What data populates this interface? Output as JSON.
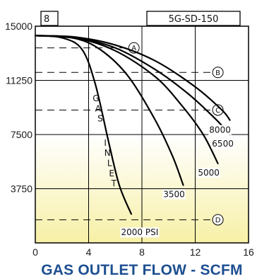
{
  "chart_data": {
    "type": "line",
    "id_label": "8",
    "model_label": "5G-SD-150",
    "xlabel": "GAS OUTLET FLOW - SCFM",
    "ylabel": "",
    "xlim": [
      0,
      16
    ],
    "ylim": [
      0,
      15000
    ],
    "x_ticks": [
      "0",
      "4",
      "8",
      "12",
      "16"
    ],
    "y_ticks": [
      "3750",
      "7500",
      "11250",
      "15000"
    ],
    "x_tick_values": [
      0,
      4,
      8,
      12,
      16
    ],
    "y_tick_values": [
      3750,
      7500,
      11250,
      15000
    ],
    "grid": true,
    "background": {
      "top": "#ffffff",
      "bottom": "#f7f0a6",
      "shade_below": 7500
    },
    "curve_annotation": "GAS INLET",
    "series": [
      {
        "name": "2000 PSI",
        "label": "2000 PSI",
        "x": [
          0,
          2,
          3.5,
          4.5,
          5.5,
          6.3,
          7.2
        ],
        "y": [
          14350,
          14200,
          13400,
          11000,
          7000,
          4000,
          2000
        ]
      },
      {
        "name": "3500",
        "label": "3500",
        "x": [
          0,
          3,
          5,
          7,
          9,
          10.3,
          11.1
        ],
        "y": [
          14350,
          14150,
          13300,
          11500,
          8500,
          6000,
          4000
        ]
      },
      {
        "name": "5000",
        "label": "5000",
        "x": [
          0,
          3,
          6,
          9,
          11,
          12.6,
          13.7
        ],
        "y": [
          14350,
          14200,
          13300,
          11500,
          9500,
          7500,
          5500
        ]
      },
      {
        "name": "6500",
        "label": "6500",
        "x": [
          0,
          3,
          6,
          9,
          11.5,
          13.5,
          14.6
        ],
        "y": [
          14350,
          14200,
          13500,
          12000,
          10300,
          8600,
          7500
        ]
      },
      {
        "name": "8000",
        "label": "8000",
        "x": [
          0,
          3,
          6,
          9,
          12,
          14,
          14.6
        ],
        "y": [
          14350,
          14250,
          13700,
          12600,
          10800,
          9200,
          8500
        ]
      }
    ],
    "reference_lines": [
      {
        "label": "A",
        "y": 13500
      },
      {
        "label": "B",
        "y": 11800
      },
      {
        "label": "C",
        "y": 9200
      },
      {
        "label": "D",
        "y": 1600
      }
    ]
  }
}
